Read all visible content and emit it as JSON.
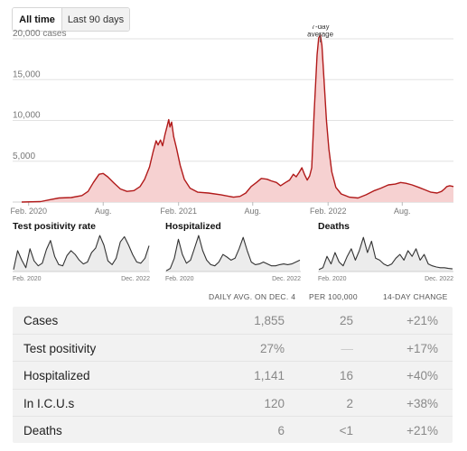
{
  "toggle": {
    "options": [
      {
        "label": "All time",
        "active": true
      },
      {
        "label": "Last 90 days",
        "active": false
      }
    ]
  },
  "chart_data": [
    {
      "type": "area",
      "title": "",
      "ylim": [
        0,
        21000
      ],
      "y_ticks": [
        {
          "value": 20000,
          "label": "20,000 cases"
        },
        {
          "value": 15000,
          "label": "15,000"
        },
        {
          "value": 10000,
          "label": "10,000"
        },
        {
          "value": 5000,
          "label": "5,000"
        }
      ],
      "x_range": [
        "2020-01-15",
        "2022-12-04"
      ],
      "x_ticks": [
        {
          "date": "2020-02-01",
          "label": "Feb. 2020"
        },
        {
          "date": "2020-08-01",
          "label": "Aug."
        },
        {
          "date": "2021-02-01",
          "label": "Feb. 2021"
        },
        {
          "date": "2021-08-01",
          "label": "Aug."
        },
        {
          "date": "2022-02-01",
          "label": "Feb. 2022"
        },
        {
          "date": "2022-08-01",
          "label": "Aug."
        }
      ],
      "grid": true,
      "annotation": {
        "date": "2022-01-13",
        "text": [
          "7-day",
          "average"
        ]
      },
      "colors": {
        "line": "#b11a1a",
        "fill": "#f6d1d1",
        "grid": "#e2e2e2"
      },
      "series": [
        {
          "points": [
            [
              "2020-01-15",
              0
            ],
            [
              "2020-03-01",
              50
            ],
            [
              "2020-03-25",
              300
            ],
            [
              "2020-04-15",
              500
            ],
            [
              "2020-05-15",
              550
            ],
            [
              "2020-06-10",
              800
            ],
            [
              "2020-06-25",
              1300
            ],
            [
              "2020-07-08",
              2400
            ],
            [
              "2020-07-22",
              3400
            ],
            [
              "2020-08-01",
              3500
            ],
            [
              "2020-08-12",
              3100
            ],
            [
              "2020-08-28",
              2300
            ],
            [
              "2020-09-12",
              1600
            ],
            [
              "2020-09-28",
              1300
            ],
            [
              "2020-10-15",
              1400
            ],
            [
              "2020-10-30",
              1900
            ],
            [
              "2020-11-10",
              2800
            ],
            [
              "2020-11-22",
              4300
            ],
            [
              "2020-12-01",
              6200
            ],
            [
              "2020-12-08",
              7500
            ],
            [
              "2020-12-13",
              7000
            ],
            [
              "2020-12-19",
              7600
            ],
            [
              "2020-12-24",
              6900
            ],
            [
              "2020-12-30",
              8300
            ],
            [
              "2021-01-04",
              9300
            ],
            [
              "2021-01-08",
              10100
            ],
            [
              "2021-01-11",
              9200
            ],
            [
              "2021-01-15",
              9800
            ],
            [
              "2021-01-20",
              8000
            ],
            [
              "2021-01-27",
              6600
            ],
            [
              "2021-02-05",
              4500
            ],
            [
              "2021-02-15",
              2800
            ],
            [
              "2021-03-01",
              1700
            ],
            [
              "2021-03-20",
              1200
            ],
            [
              "2021-04-15",
              1100
            ],
            [
              "2021-05-15",
              900
            ],
            [
              "2021-06-15",
              600
            ],
            [
              "2021-07-01",
              700
            ],
            [
              "2021-07-15",
              1100
            ],
            [
              "2021-07-28",
              1900
            ],
            [
              "2021-08-10",
              2400
            ],
            [
              "2021-08-22",
              2900
            ],
            [
              "2021-09-05",
              2800
            ],
            [
              "2021-09-15",
              2600
            ],
            [
              "2021-09-28",
              2400
            ],
            [
              "2021-10-08",
              2000
            ],
            [
              "2021-10-20",
              2400
            ],
            [
              "2021-10-30",
              2700
            ],
            [
              "2021-11-08",
              3400
            ],
            [
              "2021-11-15",
              3100
            ],
            [
              "2021-11-22",
              3600
            ],
            [
              "2021-11-29",
              4200
            ],
            [
              "2021-12-06",
              3300
            ],
            [
              "2021-12-12",
              2700
            ],
            [
              "2021-12-18",
              3200
            ],
            [
              "2021-12-23",
              4200
            ],
            [
              "2021-12-29",
              11000
            ],
            [
              "2022-01-05",
              18000
            ],
            [
              "2022-01-09",
              20100
            ],
            [
              "2022-01-13",
              20500
            ],
            [
              "2022-01-17",
              19200
            ],
            [
              "2022-01-22",
              15000
            ],
            [
              "2022-01-28",
              10000
            ],
            [
              "2022-02-03",
              6500
            ],
            [
              "2022-02-10",
              3700
            ],
            [
              "2022-02-20",
              1800
            ],
            [
              "2022-03-05",
              1000
            ],
            [
              "2022-03-25",
              600
            ],
            [
              "2022-04-15",
              500
            ],
            [
              "2022-05-05",
              900
            ],
            [
              "2022-05-25",
              1400
            ],
            [
              "2022-06-10",
              1700
            ],
            [
              "2022-06-28",
              2100
            ],
            [
              "2022-07-15",
              2200
            ],
            [
              "2022-07-28",
              2400
            ],
            [
              "2022-08-10",
              2300
            ],
            [
              "2022-08-25",
              2100
            ],
            [
              "2022-09-10",
              1800
            ],
            [
              "2022-09-25",
              1500
            ],
            [
              "2022-10-10",
              1200
            ],
            [
              "2022-10-25",
              1100
            ],
            [
              "2022-11-05",
              1300
            ],
            [
              "2022-11-12",
              1600
            ],
            [
              "2022-11-18",
              1900
            ],
            [
              "2022-11-25",
              2000
            ],
            [
              "2022-12-04",
              1900
            ]
          ]
        }
      ]
    },
    {
      "type": "area",
      "title": "Test positivity rate",
      "x_labels": [
        "Feb. 2020",
        "Dec. 2022"
      ],
      "ylim": [
        0,
        1
      ],
      "series": [
        {
          "values": [
            0.05,
            0.55,
            0.3,
            0.1,
            0.6,
            0.28,
            0.15,
            0.22,
            0.58,
            0.82,
            0.4,
            0.18,
            0.15,
            0.42,
            0.55,
            0.45,
            0.3,
            0.2,
            0.25,
            0.5,
            0.62,
            0.95,
            0.7,
            0.28,
            0.18,
            0.35,
            0.78,
            0.92,
            0.7,
            0.45,
            0.25,
            0.22,
            0.35,
            0.68
          ]
        }
      ]
    },
    {
      "type": "area",
      "title": "Hospitalized",
      "x_labels": [
        "Feb. 2020",
        "Dec. 2022"
      ],
      "ylim": [
        0,
        1
      ],
      "series": [
        {
          "values": [
            0.02,
            0.08,
            0.35,
            0.85,
            0.45,
            0.22,
            0.3,
            0.62,
            0.95,
            0.55,
            0.3,
            0.18,
            0.15,
            0.25,
            0.45,
            0.38,
            0.3,
            0.35,
            0.6,
            0.9,
            0.55,
            0.25,
            0.18,
            0.2,
            0.25,
            0.2,
            0.15,
            0.15,
            0.18,
            0.2,
            0.18,
            0.2,
            0.25,
            0.3
          ]
        }
      ]
    },
    {
      "type": "area",
      "title": "Deaths",
      "x_labels": [
        "Feb. 2020",
        "Dec. 2022"
      ],
      "ylim": [
        0,
        1
      ],
      "series": [
        {
          "values": [
            0.05,
            0.1,
            0.4,
            0.2,
            0.5,
            0.25,
            0.15,
            0.4,
            0.6,
            0.3,
            0.55,
            0.9,
            0.5,
            0.8,
            0.35,
            0.3,
            0.2,
            0.15,
            0.2,
            0.35,
            0.45,
            0.3,
            0.55,
            0.4,
            0.6,
            0.3,
            0.45,
            0.2,
            0.15,
            0.12,
            0.1,
            0.1,
            0.08,
            0.07
          ]
        }
      ]
    }
  ],
  "small_titles": [
    "Test positivity rate",
    "Hospitalized",
    "Deaths"
  ],
  "small_x_labels": {
    "start": "Feb. 2020",
    "end": "Dec. 2022"
  },
  "table": {
    "headers": {
      "avg": "DAILY AVG. ON DEC. 4",
      "per": "PER 100,000",
      "chg": "14-DAY CHANGE"
    },
    "rows": [
      {
        "label": "Cases",
        "avg": "1,855",
        "per": "25",
        "chg": "+21%"
      },
      {
        "label": "Test positivity",
        "avg": "27%",
        "per": "—",
        "chg": "+17%"
      },
      {
        "label": "Hospitalized",
        "avg": "1,141",
        "per": "16",
        "chg": "+40%"
      },
      {
        "label": "In I.C.U.s",
        "avg": "120",
        "per": "2",
        "chg": "+38%"
      },
      {
        "label": "Deaths",
        "avg": "6",
        "per": "<1",
        "chg": "+21%"
      }
    ]
  }
}
